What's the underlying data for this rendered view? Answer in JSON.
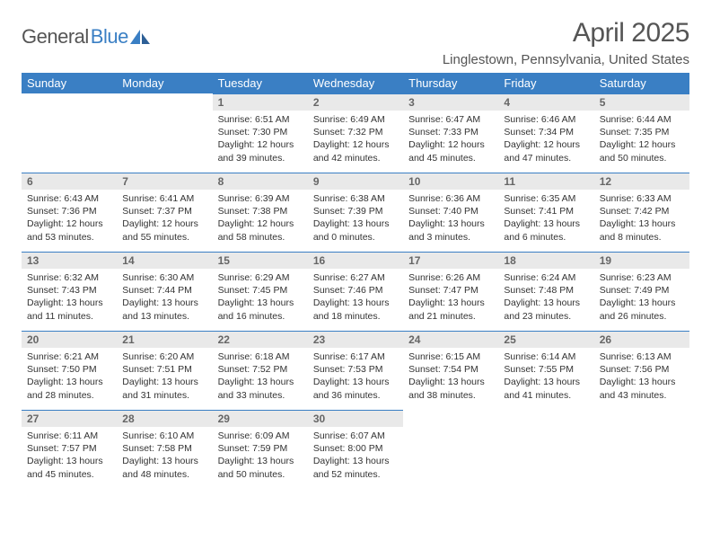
{
  "logo": {
    "text_gray": "General",
    "text_blue": "Blue"
  },
  "title": "April 2025",
  "location": "Linglestown, Pennsylvania, United States",
  "colors": {
    "header_bg": "#3a7fc4",
    "header_text": "#ffffff",
    "daynum_bg": "#e9e9e9",
    "daynum_border": "#3a7fc4",
    "body_text": "#333333",
    "title_text": "#555555",
    "page_bg": "#ffffff"
  },
  "fonts": {
    "title_size": 30,
    "location_size": 15,
    "th_size": 13,
    "daynum_size": 12,
    "body_size": 10.5
  },
  "day_headers": [
    "Sunday",
    "Monday",
    "Tuesday",
    "Wednesday",
    "Thursday",
    "Friday",
    "Saturday"
  ],
  "weeks": [
    [
      {
        "empty": true
      },
      {
        "empty": true
      },
      {
        "num": "1",
        "sunrise": "Sunrise: 6:51 AM",
        "sunset": "Sunset: 7:30 PM",
        "day1": "Daylight: 12 hours",
        "day2": "and 39 minutes."
      },
      {
        "num": "2",
        "sunrise": "Sunrise: 6:49 AM",
        "sunset": "Sunset: 7:32 PM",
        "day1": "Daylight: 12 hours",
        "day2": "and 42 minutes."
      },
      {
        "num": "3",
        "sunrise": "Sunrise: 6:47 AM",
        "sunset": "Sunset: 7:33 PM",
        "day1": "Daylight: 12 hours",
        "day2": "and 45 minutes."
      },
      {
        "num": "4",
        "sunrise": "Sunrise: 6:46 AM",
        "sunset": "Sunset: 7:34 PM",
        "day1": "Daylight: 12 hours",
        "day2": "and 47 minutes."
      },
      {
        "num": "5",
        "sunrise": "Sunrise: 6:44 AM",
        "sunset": "Sunset: 7:35 PM",
        "day1": "Daylight: 12 hours",
        "day2": "and 50 minutes."
      }
    ],
    [
      {
        "num": "6",
        "sunrise": "Sunrise: 6:43 AM",
        "sunset": "Sunset: 7:36 PM",
        "day1": "Daylight: 12 hours",
        "day2": "and 53 minutes."
      },
      {
        "num": "7",
        "sunrise": "Sunrise: 6:41 AM",
        "sunset": "Sunset: 7:37 PM",
        "day1": "Daylight: 12 hours",
        "day2": "and 55 minutes."
      },
      {
        "num": "8",
        "sunrise": "Sunrise: 6:39 AM",
        "sunset": "Sunset: 7:38 PM",
        "day1": "Daylight: 12 hours",
        "day2": "and 58 minutes."
      },
      {
        "num": "9",
        "sunrise": "Sunrise: 6:38 AM",
        "sunset": "Sunset: 7:39 PM",
        "day1": "Daylight: 13 hours",
        "day2": "and 0 minutes."
      },
      {
        "num": "10",
        "sunrise": "Sunrise: 6:36 AM",
        "sunset": "Sunset: 7:40 PM",
        "day1": "Daylight: 13 hours",
        "day2": "and 3 minutes."
      },
      {
        "num": "11",
        "sunrise": "Sunrise: 6:35 AM",
        "sunset": "Sunset: 7:41 PM",
        "day1": "Daylight: 13 hours",
        "day2": "and 6 minutes."
      },
      {
        "num": "12",
        "sunrise": "Sunrise: 6:33 AM",
        "sunset": "Sunset: 7:42 PM",
        "day1": "Daylight: 13 hours",
        "day2": "and 8 minutes."
      }
    ],
    [
      {
        "num": "13",
        "sunrise": "Sunrise: 6:32 AM",
        "sunset": "Sunset: 7:43 PM",
        "day1": "Daylight: 13 hours",
        "day2": "and 11 minutes."
      },
      {
        "num": "14",
        "sunrise": "Sunrise: 6:30 AM",
        "sunset": "Sunset: 7:44 PM",
        "day1": "Daylight: 13 hours",
        "day2": "and 13 minutes."
      },
      {
        "num": "15",
        "sunrise": "Sunrise: 6:29 AM",
        "sunset": "Sunset: 7:45 PM",
        "day1": "Daylight: 13 hours",
        "day2": "and 16 minutes."
      },
      {
        "num": "16",
        "sunrise": "Sunrise: 6:27 AM",
        "sunset": "Sunset: 7:46 PM",
        "day1": "Daylight: 13 hours",
        "day2": "and 18 minutes."
      },
      {
        "num": "17",
        "sunrise": "Sunrise: 6:26 AM",
        "sunset": "Sunset: 7:47 PM",
        "day1": "Daylight: 13 hours",
        "day2": "and 21 minutes."
      },
      {
        "num": "18",
        "sunrise": "Sunrise: 6:24 AM",
        "sunset": "Sunset: 7:48 PM",
        "day1": "Daylight: 13 hours",
        "day2": "and 23 minutes."
      },
      {
        "num": "19",
        "sunrise": "Sunrise: 6:23 AM",
        "sunset": "Sunset: 7:49 PM",
        "day1": "Daylight: 13 hours",
        "day2": "and 26 minutes."
      }
    ],
    [
      {
        "num": "20",
        "sunrise": "Sunrise: 6:21 AM",
        "sunset": "Sunset: 7:50 PM",
        "day1": "Daylight: 13 hours",
        "day2": "and 28 minutes."
      },
      {
        "num": "21",
        "sunrise": "Sunrise: 6:20 AM",
        "sunset": "Sunset: 7:51 PM",
        "day1": "Daylight: 13 hours",
        "day2": "and 31 minutes."
      },
      {
        "num": "22",
        "sunrise": "Sunrise: 6:18 AM",
        "sunset": "Sunset: 7:52 PM",
        "day1": "Daylight: 13 hours",
        "day2": "and 33 minutes."
      },
      {
        "num": "23",
        "sunrise": "Sunrise: 6:17 AM",
        "sunset": "Sunset: 7:53 PM",
        "day1": "Daylight: 13 hours",
        "day2": "and 36 minutes."
      },
      {
        "num": "24",
        "sunrise": "Sunrise: 6:15 AM",
        "sunset": "Sunset: 7:54 PM",
        "day1": "Daylight: 13 hours",
        "day2": "and 38 minutes."
      },
      {
        "num": "25",
        "sunrise": "Sunrise: 6:14 AM",
        "sunset": "Sunset: 7:55 PM",
        "day1": "Daylight: 13 hours",
        "day2": "and 41 minutes."
      },
      {
        "num": "26",
        "sunrise": "Sunrise: 6:13 AM",
        "sunset": "Sunset: 7:56 PM",
        "day1": "Daylight: 13 hours",
        "day2": "and 43 minutes."
      }
    ],
    [
      {
        "num": "27",
        "sunrise": "Sunrise: 6:11 AM",
        "sunset": "Sunset: 7:57 PM",
        "day1": "Daylight: 13 hours",
        "day2": "and 45 minutes."
      },
      {
        "num": "28",
        "sunrise": "Sunrise: 6:10 AM",
        "sunset": "Sunset: 7:58 PM",
        "day1": "Daylight: 13 hours",
        "day2": "and 48 minutes."
      },
      {
        "num": "29",
        "sunrise": "Sunrise: 6:09 AM",
        "sunset": "Sunset: 7:59 PM",
        "day1": "Daylight: 13 hours",
        "day2": "and 50 minutes."
      },
      {
        "num": "30",
        "sunrise": "Sunrise: 6:07 AM",
        "sunset": "Sunset: 8:00 PM",
        "day1": "Daylight: 13 hours",
        "day2": "and 52 minutes."
      },
      {
        "empty": true
      },
      {
        "empty": true
      },
      {
        "empty": true
      }
    ]
  ]
}
